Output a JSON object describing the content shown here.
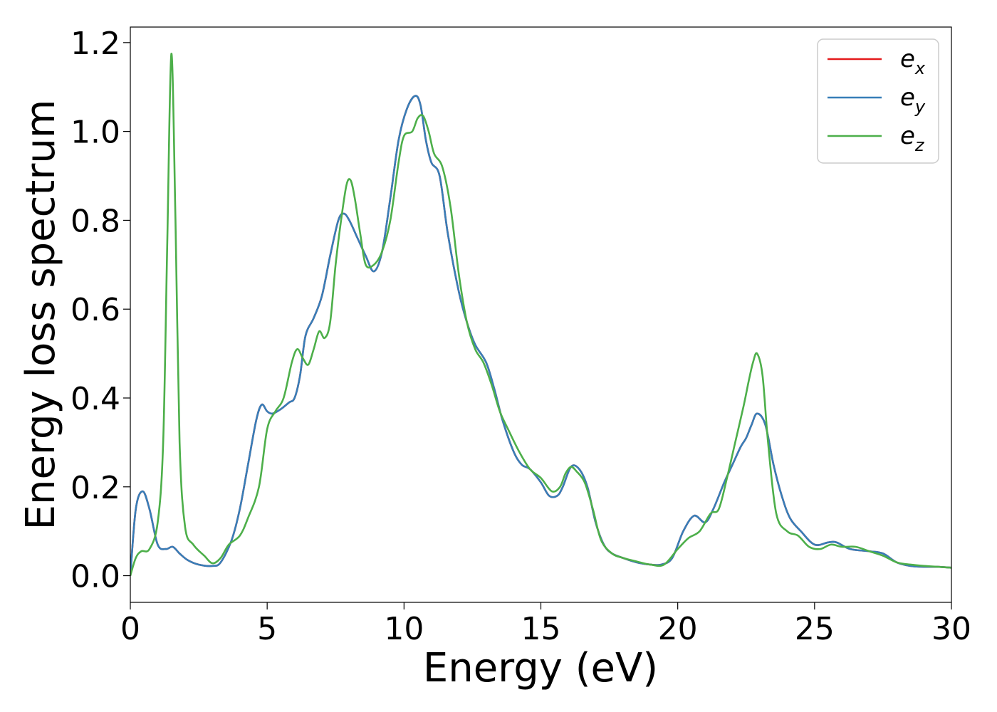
{
  "chart_data": {
    "type": "line",
    "xlabel": "Energy (eV)",
    "ylabel": "Energy loss spectrum",
    "xlim": [
      0,
      30
    ],
    "ylim": [
      -0.06,
      1.235
    ],
    "xticks": [
      0,
      5,
      10,
      15,
      20,
      25,
      30
    ],
    "yticks": [
      0.0,
      0.2,
      0.4,
      0.6,
      0.8,
      1.0,
      1.2
    ],
    "xtick_labels": [
      "0",
      "5",
      "10",
      "15",
      "20",
      "25",
      "30"
    ],
    "ytick_labels": [
      "0.0",
      "0.2",
      "0.4",
      "0.6",
      "0.8",
      "1.0",
      "1.2"
    ],
    "grid": false,
    "legend_position": "top-right",
    "series": [
      {
        "name": "e",
        "subscript": "x",
        "color": "#e41a1c",
        "x": [
          0,
          0.2,
          0.45,
          0.7,
          1.0,
          1.3,
          1.55,
          1.8,
          2.1,
          2.5,
          3.0,
          3.3,
          3.7,
          4.0,
          4.3,
          4.6,
          4.8,
          5.0,
          5.2,
          5.5,
          5.8,
          6.0,
          6.2,
          6.4,
          6.7,
          7.0,
          7.3,
          7.6,
          7.8,
          8.0,
          8.3,
          8.6,
          8.9,
          9.2,
          9.5,
          9.8,
          10.1,
          10.4,
          10.6,
          10.8,
          11.0,
          11.3,
          11.6,
          12.0,
          12.3,
          12.6,
          13.0,
          13.3,
          13.6,
          14.0,
          14.3,
          14.6,
          15.0,
          15.3,
          15.6,
          15.8,
          16.1,
          16.4,
          16.7,
          17.0,
          17.3,
          17.6,
          18.0,
          18.5,
          19.0,
          19.4,
          19.8,
          20.2,
          20.6,
          21.0,
          21.3,
          21.7,
          22.0,
          22.3,
          22.5,
          22.7,
          22.9,
          23.2,
          23.5,
          23.8,
          24.1,
          24.5,
          25.0,
          25.5,
          25.8,
          26.3,
          27.0,
          27.5,
          28.0,
          28.5,
          29.0,
          29.5,
          30.0
        ],
        "y": [
          0.0,
          0.15,
          0.19,
          0.15,
          0.07,
          0.06,
          0.065,
          0.05,
          0.035,
          0.025,
          0.022,
          0.03,
          0.08,
          0.15,
          0.25,
          0.35,
          0.385,
          0.37,
          0.365,
          0.375,
          0.39,
          0.4,
          0.45,
          0.54,
          0.58,
          0.63,
          0.72,
          0.8,
          0.815,
          0.8,
          0.76,
          0.72,
          0.685,
          0.73,
          0.85,
          0.98,
          1.05,
          1.08,
          1.06,
          0.98,
          0.93,
          0.9,
          0.77,
          0.64,
          0.57,
          0.52,
          0.48,
          0.42,
          0.35,
          0.28,
          0.25,
          0.24,
          0.21,
          0.18,
          0.18,
          0.2,
          0.245,
          0.24,
          0.2,
          0.12,
          0.07,
          0.05,
          0.04,
          0.03,
          0.025,
          0.025,
          0.04,
          0.1,
          0.135,
          0.12,
          0.15,
          0.21,
          0.25,
          0.29,
          0.31,
          0.34,
          0.365,
          0.34,
          0.25,
          0.18,
          0.13,
          0.1,
          0.07,
          0.075,
          0.075,
          0.06,
          0.055,
          0.05,
          0.03,
          0.022,
          0.02,
          0.02,
          0.018
        ]
      },
      {
        "name": "e",
        "subscript": "y",
        "color": "#377eb8",
        "x": [
          0,
          0.2,
          0.45,
          0.7,
          1.0,
          1.3,
          1.55,
          1.8,
          2.1,
          2.5,
          3.0,
          3.3,
          3.7,
          4.0,
          4.3,
          4.6,
          4.8,
          5.0,
          5.2,
          5.5,
          5.8,
          6.0,
          6.2,
          6.4,
          6.7,
          7.0,
          7.3,
          7.6,
          7.8,
          8.0,
          8.3,
          8.6,
          8.9,
          9.2,
          9.5,
          9.8,
          10.1,
          10.4,
          10.6,
          10.8,
          11.0,
          11.3,
          11.6,
          12.0,
          12.3,
          12.6,
          13.0,
          13.3,
          13.6,
          14.0,
          14.3,
          14.6,
          15.0,
          15.3,
          15.6,
          15.8,
          16.1,
          16.4,
          16.7,
          17.0,
          17.3,
          17.6,
          18.0,
          18.5,
          19.0,
          19.4,
          19.8,
          20.2,
          20.6,
          21.0,
          21.3,
          21.7,
          22.0,
          22.3,
          22.5,
          22.7,
          22.9,
          23.2,
          23.5,
          23.8,
          24.1,
          24.5,
          25.0,
          25.5,
          25.8,
          26.3,
          27.0,
          27.5,
          28.0,
          28.5,
          29.0,
          29.5,
          30.0
        ],
        "y": [
          0.0,
          0.15,
          0.19,
          0.15,
          0.07,
          0.06,
          0.065,
          0.05,
          0.035,
          0.025,
          0.022,
          0.03,
          0.08,
          0.15,
          0.25,
          0.35,
          0.385,
          0.37,
          0.365,
          0.375,
          0.39,
          0.4,
          0.45,
          0.54,
          0.58,
          0.63,
          0.72,
          0.8,
          0.815,
          0.8,
          0.76,
          0.72,
          0.685,
          0.73,
          0.85,
          0.98,
          1.05,
          1.08,
          1.06,
          0.98,
          0.93,
          0.9,
          0.77,
          0.64,
          0.57,
          0.52,
          0.48,
          0.42,
          0.35,
          0.28,
          0.25,
          0.24,
          0.21,
          0.18,
          0.18,
          0.2,
          0.245,
          0.24,
          0.2,
          0.12,
          0.07,
          0.05,
          0.04,
          0.03,
          0.025,
          0.025,
          0.04,
          0.1,
          0.135,
          0.12,
          0.15,
          0.21,
          0.25,
          0.29,
          0.31,
          0.34,
          0.365,
          0.34,
          0.25,
          0.18,
          0.13,
          0.1,
          0.07,
          0.075,
          0.075,
          0.06,
          0.055,
          0.05,
          0.03,
          0.022,
          0.02,
          0.02,
          0.018
        ]
      },
      {
        "name": "e",
        "subscript": "z",
        "color": "#4daf4a",
        "x": [
          0,
          0.2,
          0.4,
          0.7,
          1.0,
          1.2,
          1.35,
          1.5,
          1.65,
          1.8,
          2.0,
          2.3,
          2.7,
          3.0,
          3.3,
          3.6,
          4.0,
          4.3,
          4.7,
          5.0,
          5.3,
          5.6,
          5.9,
          6.1,
          6.3,
          6.5,
          6.7,
          6.9,
          7.1,
          7.3,
          7.5,
          7.7,
          7.9,
          8.05,
          8.2,
          8.4,
          8.6,
          8.9,
          9.2,
          9.5,
          9.8,
          10.0,
          10.3,
          10.5,
          10.7,
          10.9,
          11.1,
          11.4,
          11.7,
          12.0,
          12.3,
          12.6,
          12.9,
          13.2,
          13.5,
          13.8,
          14.2,
          14.6,
          15.0,
          15.4,
          15.7,
          15.9,
          16.1,
          16.3,
          16.6,
          16.9,
          17.2,
          17.6,
          18.0,
          18.5,
          19.0,
          19.5,
          20.0,
          20.4,
          20.8,
          21.2,
          21.5,
          21.8,
          22.1,
          22.4,
          22.6,
          22.75,
          22.9,
          23.1,
          23.3,
          23.6,
          24.0,
          24.4,
          24.8,
          25.2,
          25.6,
          26.0,
          26.5,
          27.0,
          27.5,
          28.0,
          28.5,
          29.0,
          29.5,
          30.0
        ],
        "y": [
          0.0,
          0.04,
          0.055,
          0.06,
          0.12,
          0.3,
          0.75,
          1.175,
          0.8,
          0.3,
          0.11,
          0.07,
          0.045,
          0.028,
          0.04,
          0.07,
          0.09,
          0.13,
          0.2,
          0.33,
          0.37,
          0.4,
          0.48,
          0.51,
          0.49,
          0.475,
          0.51,
          0.55,
          0.535,
          0.57,
          0.7,
          0.8,
          0.88,
          0.89,
          0.85,
          0.77,
          0.7,
          0.7,
          0.73,
          0.8,
          0.93,
          0.99,
          1.0,
          1.03,
          1.035,
          1.0,
          0.95,
          0.92,
          0.83,
          0.68,
          0.57,
          0.51,
          0.48,
          0.43,
          0.37,
          0.33,
          0.28,
          0.24,
          0.22,
          0.19,
          0.2,
          0.23,
          0.245,
          0.235,
          0.21,
          0.15,
          0.08,
          0.05,
          0.04,
          0.032,
          0.025,
          0.025,
          0.06,
          0.085,
          0.1,
          0.14,
          0.15,
          0.22,
          0.3,
          0.38,
          0.44,
          0.48,
          0.5,
          0.45,
          0.3,
          0.14,
          0.1,
          0.09,
          0.065,
          0.06,
          0.07,
          0.065,
          0.065,
          0.055,
          0.045,
          0.03,
          0.025,
          0.022,
          0.02,
          0.018
        ]
      }
    ]
  }
}
